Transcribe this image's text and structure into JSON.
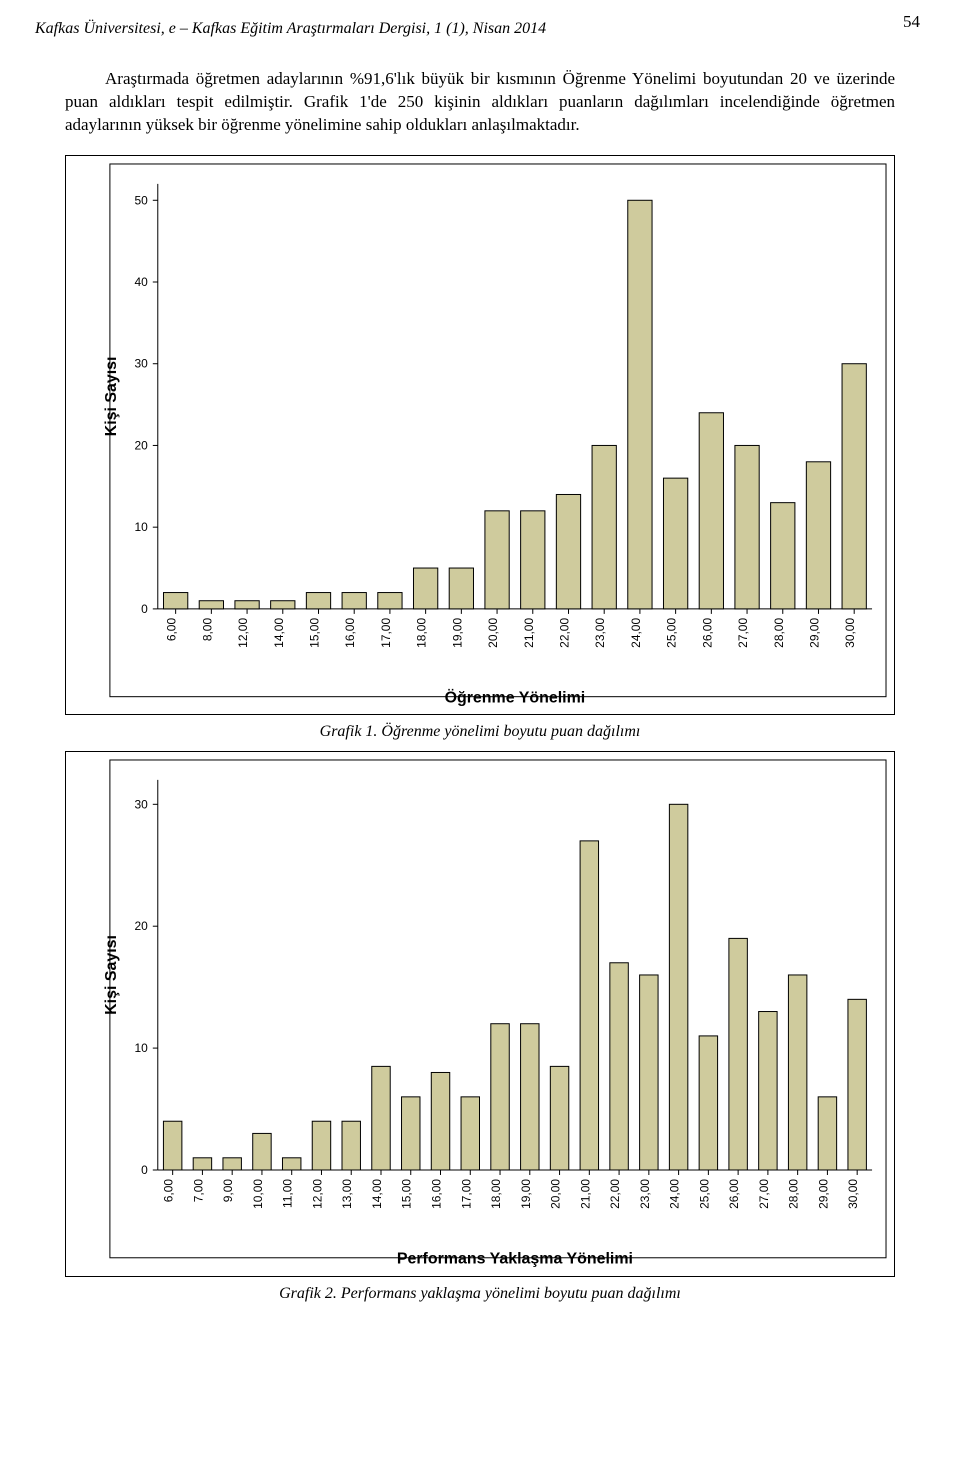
{
  "page_number": "54",
  "journal_header": "Kafkas Üniversitesi, e – Kafkas Eğitim Araştırmaları Dergisi, 1 (1), Nisan 2014",
  "paragraph": "Araştırmada öğretmen adaylarının %91,6'lık büyük bir kısmının Öğrenme Yönelimi boyutundan 20 ve üzerinde puan aldıkları tespit edilmiştir. Grafik 1'de 250 kişinin aldıkları puanların dağılımları incelendiğinde öğretmen adaylarının yüksek bir öğrenme yönelimine sahip oldukları anlaşılmaktadır.",
  "chart1": {
    "type": "bar",
    "ylabel": "Kişi Sayısı",
    "xlabel": "Öğrenme Yönelimi",
    "ylim": [
      0,
      52
    ],
    "yticks": [
      0,
      10,
      20,
      30,
      40,
      50
    ],
    "categories": [
      "6,00",
      "8,00",
      "12,00",
      "14,00",
      "15,00",
      "16,00",
      "17,00",
      "18,00",
      "19,00",
      "20,00",
      "21,00",
      "22,00",
      "23,00",
      "24,00",
      "25,00",
      "26,00",
      "27,00",
      "28,00",
      "29,00",
      "30,00"
    ],
    "values": [
      2,
      1,
      1,
      1,
      2,
      2,
      2,
      5,
      5,
      12,
      12,
      14,
      20,
      50,
      16,
      24,
      20,
      13,
      18,
      30
    ],
    "bar_fill": "#cfcb9d",
    "bar_stroke": "#000000",
    "background": "#ffffff",
    "plot_background": "#ffffff",
    "inner_border": "#000000",
    "ylabel_fontsize": 16,
    "xlabel_fontsize": 16,
    "tick_fontsize": 12,
    "bar_width_ratio": 0.68,
    "caption": "Grafik 1. Öğrenme yönelimi boyutu puan dağılımı"
  },
  "chart2": {
    "type": "bar",
    "ylabel": "Kişi Sayısı",
    "xlabel": "Performans Yaklaşma Yönelimi",
    "ylim": [
      0,
      32
    ],
    "yticks": [
      0,
      10,
      20,
      30
    ],
    "categories": [
      "6,00",
      "7,00",
      "9,00",
      "10,00",
      "11,00",
      "12,00",
      "13,00",
      "14,00",
      "15,00",
      "16,00",
      "17,00",
      "18,00",
      "19,00",
      "20,00",
      "21,00",
      "22,00",
      "23,00",
      "24,00",
      "25,00",
      "26,00",
      "27,00",
      "28,00",
      "29,00",
      "30,00"
    ],
    "values": [
      4,
      1,
      1,
      3,
      1,
      4,
      4,
      8.5,
      6,
      8,
      6,
      12,
      12,
      8.5,
      27,
      17,
      16,
      30,
      11,
      19,
      13,
      16,
      6,
      14
    ],
    "bar_fill": "#cfcb9d",
    "bar_stroke": "#000000",
    "background": "#ffffff",
    "plot_background": "#ffffff",
    "inner_border": "#000000",
    "ylabel_fontsize": 16,
    "xlabel_fontsize": 16,
    "tick_fontsize": 12,
    "bar_width_ratio": 0.62,
    "caption": "Grafik 2. Performans yaklaşma yönelimi boyutu puan dağılımı"
  }
}
